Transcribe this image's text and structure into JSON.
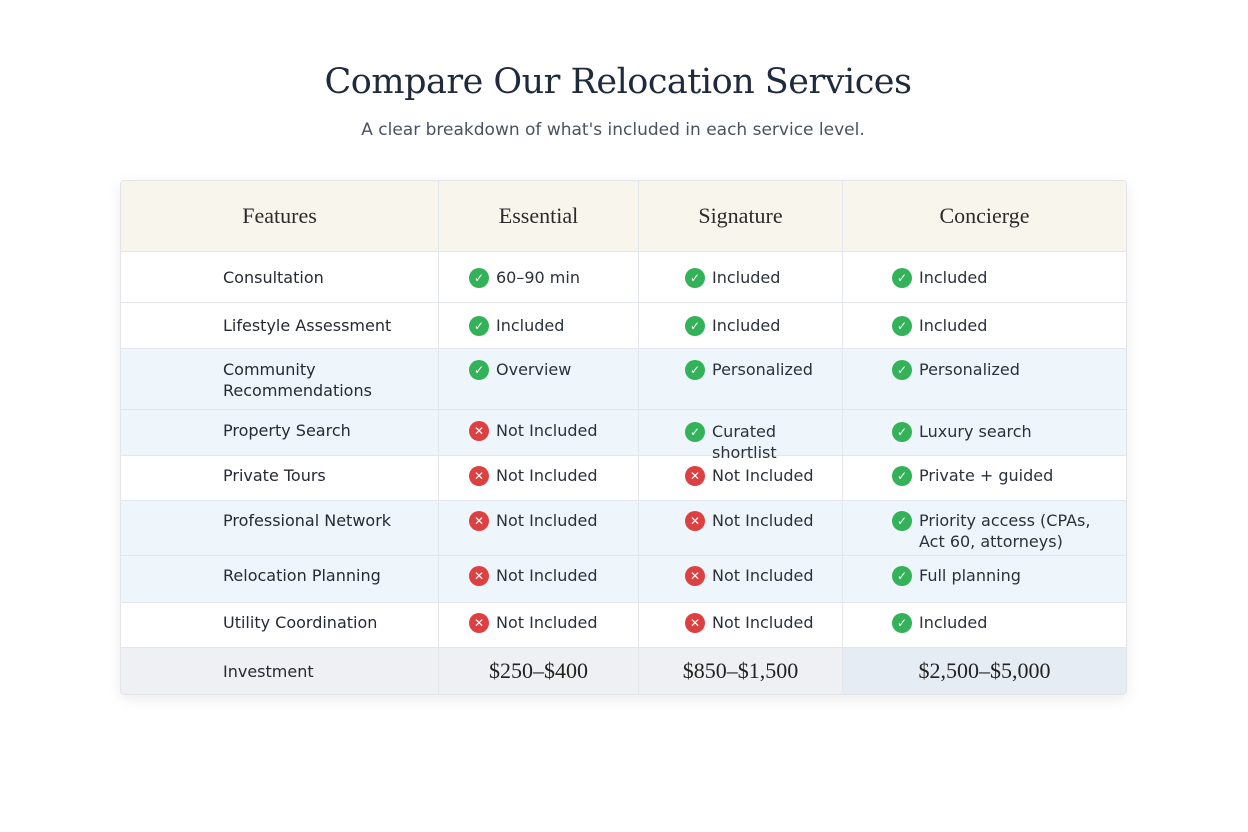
{
  "header": {
    "title": "Compare Our Relocation Services",
    "subtitle": "A clear breakdown of what's included in each service level."
  },
  "table": {
    "columns": [
      "Features",
      "Essential",
      "Signature",
      "Concierge"
    ],
    "rows": [
      {
        "feature": "Consultation",
        "cells": [
          {
            "status": "check",
            "text": "60–90 min"
          },
          {
            "status": "check",
            "text": "Included"
          },
          {
            "status": "check",
            "text": "Included"
          }
        ]
      },
      {
        "feature": "Lifestyle Assessment",
        "cells": [
          {
            "status": "check",
            "text": "Included"
          },
          {
            "status": "check",
            "text": "Included"
          },
          {
            "status": "check",
            "text": "Included"
          }
        ]
      },
      {
        "feature": "Community Recommendations",
        "cells": [
          {
            "status": "check",
            "text": "Overview"
          },
          {
            "status": "check",
            "text": "Personalized"
          },
          {
            "status": "check",
            "text": "Personalized"
          }
        ]
      },
      {
        "feature": "Property Search",
        "cells": [
          {
            "status": "cross",
            "text": "Not Included"
          },
          {
            "status": "check",
            "text": "Curated shortlist"
          },
          {
            "status": "check",
            "text": "Luxury search"
          }
        ]
      },
      {
        "feature": "Private Tours",
        "cells": [
          {
            "status": "cross",
            "text": "Not Included"
          },
          {
            "status": "cross",
            "text": "Not Included"
          },
          {
            "status": "check",
            "text": "Private + guided"
          }
        ]
      },
      {
        "feature": "Professional Network",
        "cells": [
          {
            "status": "cross",
            "text": "Not Included"
          },
          {
            "status": "cross",
            "text": "Not Included"
          },
          {
            "status": "check",
            "text": "Priority access (CPAs, Act 60, attorneys)"
          }
        ]
      },
      {
        "feature": "Relocation Planning",
        "cells": [
          {
            "status": "cross",
            "text": "Not Included"
          },
          {
            "status": "cross",
            "text": "Not Included"
          },
          {
            "status": "check",
            "text": "Full planning"
          }
        ]
      },
      {
        "feature": "Utility Coordination",
        "cells": [
          {
            "status": "cross",
            "text": "Not Included"
          },
          {
            "status": "cross",
            "text": "Not Included"
          },
          {
            "status": "check",
            "text": "Included"
          }
        ]
      }
    ],
    "investment": {
      "label": "Investment",
      "prices": [
        "$250–$400",
        "$850–$1,500",
        "$2,500–$5,000"
      ]
    }
  },
  "colors": {
    "check": "#34b25a",
    "cross": "#dd4040",
    "header_bg": "#f8f5ec",
    "highlight_row": "#eef5fb"
  }
}
